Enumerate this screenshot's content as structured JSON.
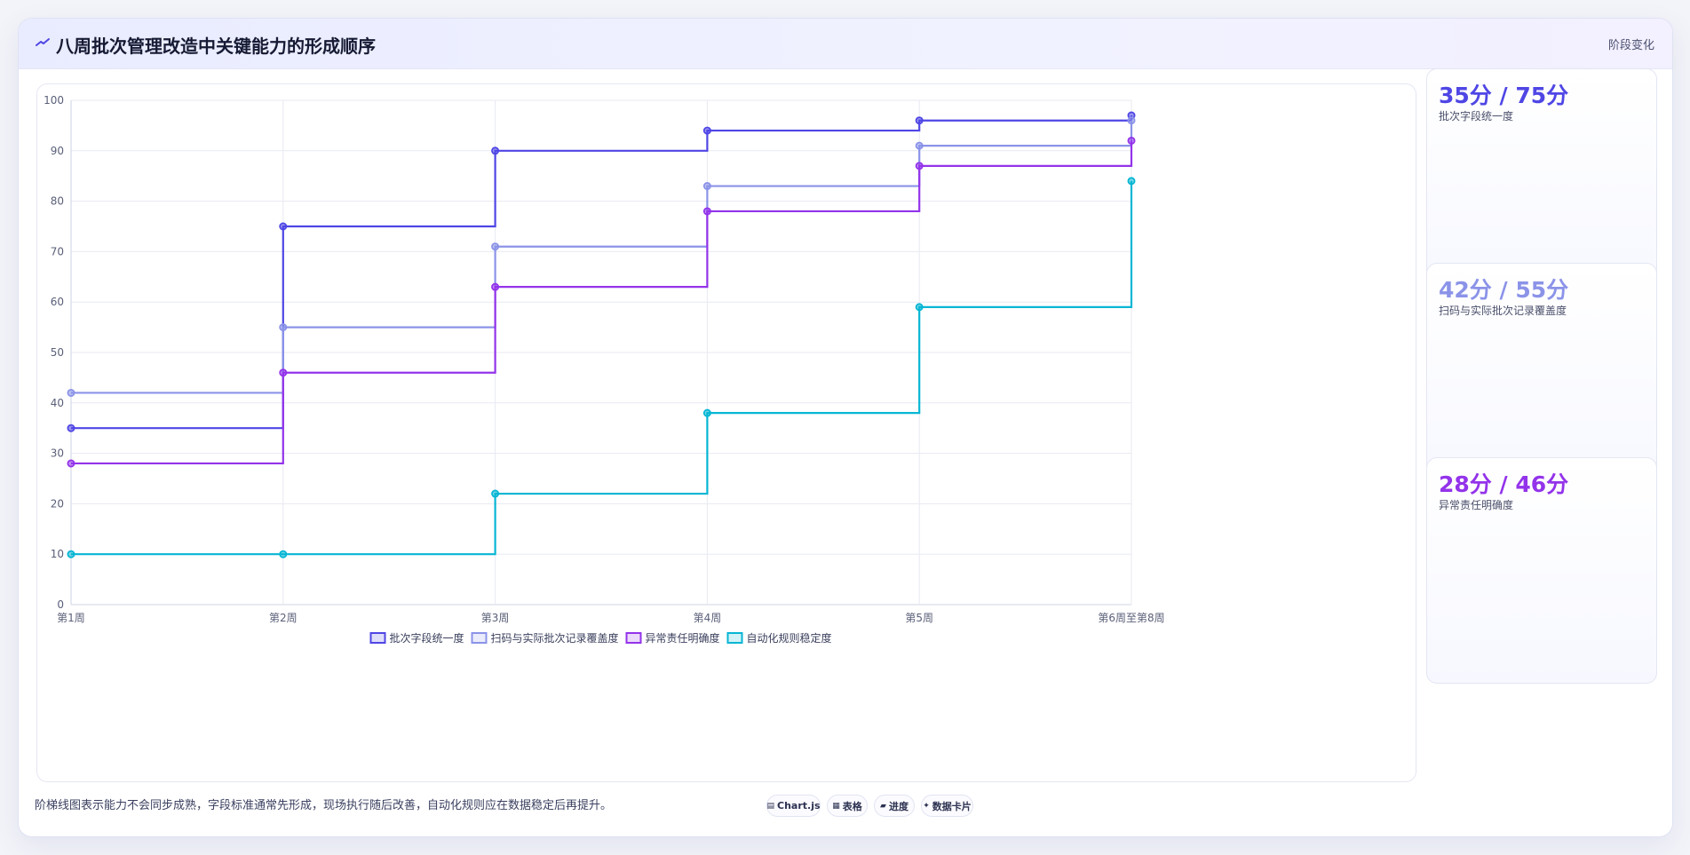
{
  "header": {
    "title": "八周批次管理改造中关键能力的形成顺序",
    "stage_label": "阶段变化",
    "title_icon": "trend-line-icon"
  },
  "chart_data": {
    "type": "line",
    "stepped": true,
    "categories": [
      "第1周",
      "第2周",
      "第3周",
      "第4周",
      "第5周",
      "第6周至第8周"
    ],
    "ylim": [
      0,
      100
    ],
    "yticks": [
      0,
      10,
      20,
      30,
      40,
      50,
      60,
      70,
      80,
      90,
      100
    ],
    "grid": true,
    "legend_position": "bottom",
    "series": [
      {
        "name": "批次字段统一度",
        "color": "#4f46e5",
        "values": [
          35,
          75,
          90,
          94,
          96,
          97
        ]
      },
      {
        "name": "扫码与实际批次记录覆盖度",
        "color": "#8b93e8",
        "values": [
          42,
          55,
          71,
          83,
          91,
          96
        ]
      },
      {
        "name": "异常责任明确度",
        "color": "#9333ea",
        "values": [
          28,
          46,
          63,
          78,
          87,
          92
        ]
      },
      {
        "name": "自动化规则稳定度",
        "color": "#06b6d4",
        "values": [
          10,
          10,
          22,
          38,
          59,
          84
        ]
      }
    ]
  },
  "side_cards": [
    {
      "value": "35分 / 75分",
      "label": "批次字段统一度",
      "color": "#4f46e5"
    },
    {
      "value": "42分 / 55分",
      "label": "扫码与实际批次记录覆盖度",
      "color": "#8b93e8"
    },
    {
      "value": "28分 / 46分",
      "label": "异常责任明确度",
      "color": "#9333ea"
    }
  ],
  "footer": {
    "note": "阶梯线图表示能力不会同步成熟，字段标准通常先形成，现场执行随后改善，自动化规则应在数据稳定后再提升。",
    "chips": [
      {
        "label": "Chart.js",
        "icon": "▤"
      },
      {
        "label": "表格",
        "icon": "▦"
      },
      {
        "label": "进度",
        "icon": "▰"
      },
      {
        "label": "数据卡片",
        "icon": "✦"
      }
    ]
  }
}
